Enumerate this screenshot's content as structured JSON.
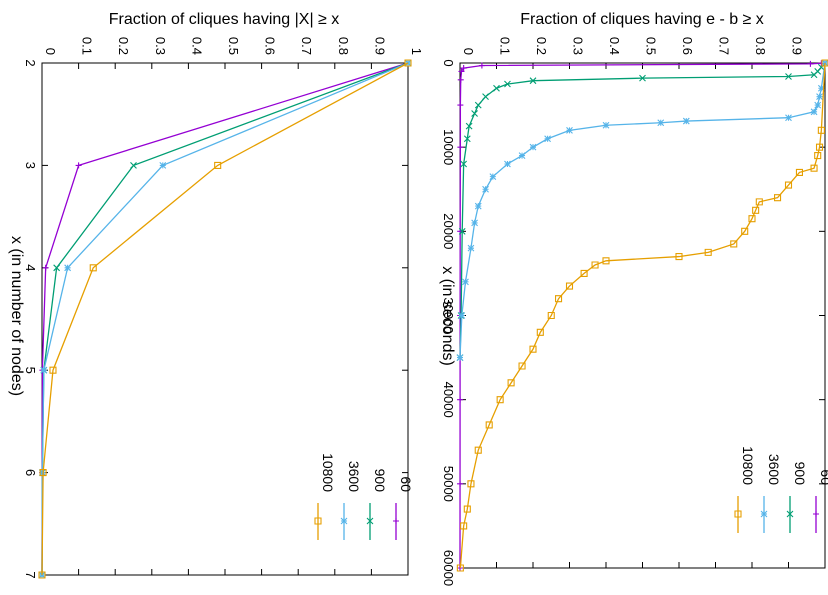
{
  "chart_data": [
    {
      "type": "line",
      "ylabel": "Fraction of cliques having e - b ≥ x",
      "xlabel": "x (in seconds)",
      "xlim": [
        0,
        60000
      ],
      "ylim": [
        0,
        1
      ],
      "x_ticks": [
        "0",
        "10000",
        "20000",
        "30000",
        "40000",
        "50000",
        "60000"
      ],
      "y_ticks": [
        "0",
        "0.1",
        "0.2",
        "0.3",
        "0.4",
        "0.5",
        "0.6",
        "0.7",
        "0.8",
        "0.9",
        "1"
      ],
      "grid": false,
      "legend_position": "bottom-right (rotated)",
      "series": [
        {
          "name": "60",
          "color": "#9400d3",
          "marker": "plus",
          "x": [
            0,
            30,
            100,
            300,
            600,
            1000,
            2000,
            5000,
            10000,
            20000,
            30000,
            40000,
            50000,
            60000
          ],
          "y": [
            1,
            0.99,
            0.96,
            0.06,
            0.01,
            0.004,
            0.002,
            0.001,
            0.001,
            0.0005,
            0.0003,
            0.0002,
            0.0001,
            0
          ]
        },
        {
          "name": "900",
          "color": "#009e73",
          "marker": "x",
          "x": [
            0,
            500,
            1000,
            1400,
            1600,
            1800,
            2100,
            2500,
            3000,
            4000,
            5000,
            6000,
            7500,
            9000,
            12000,
            20000,
            30000,
            35000
          ],
          "y": [
            1,
            0.99,
            0.98,
            0.97,
            0.9,
            0.5,
            0.2,
            0.13,
            0.1,
            0.07,
            0.05,
            0.04,
            0.025,
            0.02,
            0.01,
            0.006,
            0.003,
            0
          ]
        },
        {
          "name": "3600",
          "color": "#56b4e9",
          "marker": "star",
          "x": [
            0,
            3000,
            4000,
            5000,
            5800,
            6500,
            6900,
            7100,
            7400,
            8000,
            9000,
            10000,
            11000,
            12000,
            13500,
            15000,
            17000,
            19000,
            22000,
            26000,
            30000,
            35000
          ],
          "y": [
            1,
            0.99,
            0.985,
            0.98,
            0.97,
            0.9,
            0.62,
            0.55,
            0.4,
            0.3,
            0.24,
            0.2,
            0.17,
            0.13,
            0.09,
            0.07,
            0.05,
            0.04,
            0.03,
            0.015,
            0.005,
            0
          ]
        },
        {
          "name": "10800",
          "color": "#e69f00",
          "marker": "square",
          "x": [
            0,
            8000,
            10000,
            11000,
            12500,
            13000,
            14500,
            16000,
            16500,
            17500,
            18500,
            20000,
            21500,
            22500,
            23000,
            23500,
            24000,
            25000,
            26500,
            28000,
            30000,
            32000,
            34000,
            36000,
            38000,
            40000,
            43000,
            46000,
            50000,
            53000,
            55000,
            60000
          ],
          "y": [
            1,
            0.99,
            0.985,
            0.98,
            0.97,
            0.93,
            0.9,
            0.87,
            0.82,
            0.81,
            0.8,
            0.78,
            0.75,
            0.68,
            0.6,
            0.4,
            0.37,
            0.34,
            0.3,
            0.27,
            0.25,
            0.22,
            0.2,
            0.17,
            0.14,
            0.11,
            0.08,
            0.05,
            0.03,
            0.02,
            0.01,
            0.001
          ]
        }
      ]
    },
    {
      "type": "line",
      "ylabel": "Fraction of cliques having |X| ≥ x",
      "xlabel": "x (in number of nodes)",
      "xlim": [
        2,
        7
      ],
      "ylim": [
        0,
        1
      ],
      "x_ticks": [
        "2",
        "3",
        "4",
        "5",
        "6",
        "7"
      ],
      "y_ticks": [
        "0",
        "0.1",
        "0.2",
        "0.3",
        "0.4",
        "0.5",
        "0.6",
        "0.7",
        "0.8",
        "0.9",
        "1"
      ],
      "grid": false,
      "legend_position": "bottom-right (rotated)",
      "series": [
        {
          "name": "60",
          "color": "#9400d3",
          "marker": "plus",
          "x": [
            2,
            3,
            4,
            5,
            6,
            7
          ],
          "y": [
            1,
            0.1,
            0.01,
            0.001,
            0.0005,
            0
          ]
        },
        {
          "name": "900",
          "color": "#009e73",
          "marker": "x",
          "x": [
            2,
            3,
            4,
            5,
            6,
            7
          ],
          "y": [
            1,
            0.25,
            0.04,
            0.005,
            0.001,
            0
          ]
        },
        {
          "name": "3600",
          "color": "#56b4e9",
          "marker": "star",
          "x": [
            2,
            3,
            4,
            5,
            6,
            7
          ],
          "y": [
            1,
            0.33,
            0.07,
            0.005,
            0.001,
            0
          ]
        },
        {
          "name": "10800",
          "color": "#e69f00",
          "marker": "square",
          "x": [
            2,
            3,
            4,
            5,
            6,
            7
          ],
          "y": [
            1,
            0.48,
            0.14,
            0.03,
            0.003,
            0
          ]
        }
      ]
    }
  ]
}
